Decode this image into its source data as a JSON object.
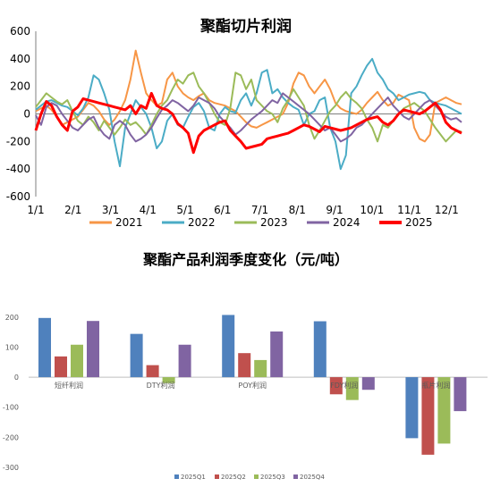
{
  "chart_data": [
    {
      "type": "line",
      "title": "聚酯切片利润",
      "xlabel": "",
      "ylabel": "",
      "ylim": [
        -600,
        600
      ],
      "yticks": [
        600,
        400,
        200,
        0,
        -200,
        -400,
        -600
      ],
      "xticks": [
        "1/1",
        "2/1",
        "3/1",
        "4/1",
        "5/1",
        "6/1",
        "7/1",
        "8/1",
        "9/1",
        "10/1",
        "11/1",
        "12/1"
      ],
      "legend_position": "bottom",
      "series": [
        {
          "name": "2021",
          "color": "#F79646",
          "width": 2,
          "values": [
            20,
            40,
            60,
            30,
            -20,
            -80,
            -60,
            -40,
            -20,
            30,
            80,
            60,
            20,
            -40,
            -80,
            -40,
            20,
            100,
            250,
            460,
            300,
            150,
            100,
            60,
            80,
            250,
            300,
            200,
            150,
            120,
            100,
            130,
            150,
            100,
            80,
            70,
            60,
            40,
            20,
            -20,
            -60,
            -90,
            -100,
            -80,
            -60,
            -40,
            -20,
            0,
            80,
            220,
            300,
            280,
            200,
            150,
            200,
            250,
            180,
            80,
            40,
            20,
            10,
            0,
            30,
            80,
            120,
            160,
            100,
            60,
            80,
            140,
            120,
            100,
            -100,
            -180,
            -200,
            -150,
            80,
            100,
            120,
            100,
            80,
            70
          ]
        },
        {
          "name": "2022",
          "color": "#4BACC6",
          "width": 2,
          "values": [
            30,
            60,
            90,
            100,
            80,
            60,
            50,
            20,
            -10,
            40,
            120,
            280,
            250,
            150,
            30,
            -200,
            -380,
            -100,
            0,
            100,
            50,
            0,
            -100,
            -250,
            -200,
            -50,
            0,
            -80,
            -100,
            -20,
            50,
            80,
            20,
            -100,
            -120,
            0,
            50,
            20,
            10,
            100,
            150,
            60,
            150,
            300,
            320,
            150,
            180,
            120,
            80,
            50,
            30,
            -80,
            0,
            20,
            100,
            120,
            -100,
            -200,
            -400,
            -300,
            150,
            200,
            280,
            350,
            400,
            300,
            250,
            180,
            150,
            100,
            120,
            140,
            150,
            160,
            150,
            100,
            80,
            70,
            60,
            40,
            20,
            0
          ]
        },
        {
          "name": "2023",
          "color": "#9BBB59",
          "width": 2,
          "values": [
            50,
            100,
            150,
            120,
            90,
            70,
            100,
            20,
            -50,
            -80,
            -20,
            -60,
            -120,
            -50,
            -100,
            -150,
            -100,
            -40,
            -80,
            -60,
            -100,
            -150,
            -80,
            0,
            60,
            100,
            180,
            250,
            220,
            280,
            300,
            200,
            150,
            80,
            0,
            -60,
            -80,
            40,
            300,
            280,
            180,
            250,
            100,
            60,
            20,
            0,
            -60,
            40,
            100,
            180,
            120,
            60,
            -80,
            -180,
            -120,
            -50,
            20,
            60,
            120,
            160,
            110,
            80,
            40,
            -40,
            -100,
            -200,
            -80,
            -100,
            -50,
            0,
            40,
            60,
            80,
            50,
            20,
            -40,
            -100,
            -150,
            -200,
            -160,
            -120,
            -130
          ]
        },
        {
          "name": "2024",
          "color": "#8064A2",
          "width": 2,
          "values": [
            -10,
            -80,
            50,
            80,
            60,
            0,
            -50,
            -100,
            -120,
            -80,
            -40,
            -20,
            -100,
            -150,
            -180,
            -80,
            -50,
            -80,
            -150,
            -200,
            -180,
            -150,
            -100,
            -30,
            30,
            60,
            100,
            80,
            50,
            20,
            60,
            120,
            100,
            80,
            40,
            -20,
            -60,
            -100,
            -150,
            -120,
            -80,
            -40,
            -10,
            20,
            60,
            100,
            80,
            150,
            120,
            90,
            60,
            30,
            0,
            -40,
            -80,
            -120,
            -100,
            -150,
            -200,
            -180,
            -150,
            -100,
            -80,
            -40,
            0,
            40,
            80,
            120,
            60,
            20,
            -20,
            -40,
            0,
            40,
            80,
            100,
            60,
            20,
            -20,
            -40,
            -30,
            -60
          ]
        },
        {
          "name": "2025",
          "color": "#FF0000",
          "width": 3,
          "values": [
            -120,
            0,
            90,
            60,
            -20,
            -80,
            -120,
            20,
            50,
            110,
            100,
            90,
            80,
            70,
            60,
            50,
            40,
            30,
            60,
            0,
            60,
            40,
            150,
            60,
            40,
            30,
            0,
            -70,
            -100,
            -140,
            -280,
            -160,
            -120,
            -100,
            -80,
            -60,
            -50,
            -120,
            -160,
            -200,
            -250,
            -240,
            -230,
            -220,
            -180,
            -170,
            -160,
            -150,
            -140,
            -120,
            -100,
            -80,
            -90,
            -110,
            -130,
            -90,
            -100,
            -110,
            -120,
            -110,
            -100,
            -80,
            -60,
            -40,
            -30,
            -20,
            -60,
            -80,
            -50,
            0,
            30,
            20,
            10,
            0,
            20,
            50,
            80,
            30,
            -60,
            -100,
            -120,
            -140
          ]
        }
      ]
    },
    {
      "type": "bar",
      "title": "聚酯产品利润季度变化（元/吨）",
      "xlabel": "",
      "ylabel": "",
      "ylim": [
        -300,
        250
      ],
      "yticks": [
        200,
        100,
        0,
        -100,
        -200,
        -300
      ],
      "categories": [
        "短纤利润",
        "DTY利润",
        "POY利润",
        "FDY利润",
        "瓶片利润"
      ],
      "legend_position": "bottom",
      "series": [
        {
          "name": "2025Q1",
          "color": "#4F81BD",
          "values": [
            197,
            144,
            207,
            186,
            -203
          ]
        },
        {
          "name": "2025Q2",
          "color": "#C0504D",
          "values": [
            69,
            40,
            80,
            -57,
            -258
          ]
        },
        {
          "name": "2025Q3",
          "color": "#9BBB59",
          "values": [
            108,
            -20,
            57,
            -76,
            -221
          ]
        },
        {
          "name": "2025Q4",
          "color": "#8064A2",
          "values": [
            187,
            108,
            152,
            -42,
            -113
          ]
        }
      ]
    }
  ]
}
